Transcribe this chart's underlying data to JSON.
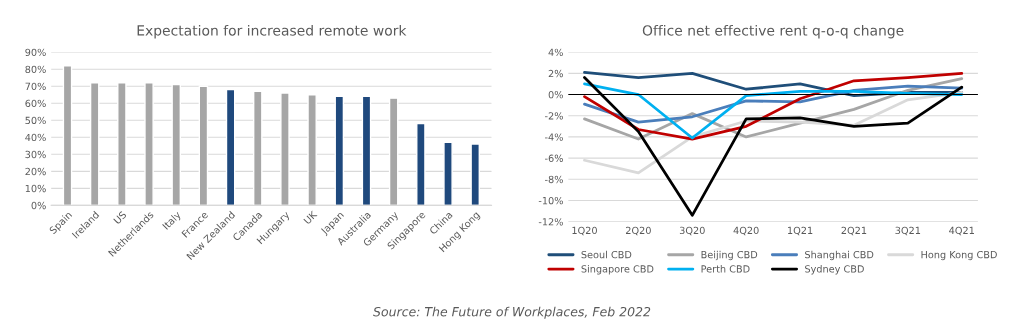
{
  "chart_data": [
    {
      "type": "bar",
      "title": "Expectation for increased remote work",
      "categories": [
        "Spain",
        "Ireland",
        "US",
        "Netherlands",
        "Italy",
        "France",
        "New Zealand",
        "Canada",
        "Hungary",
        "UK",
        "Japan",
        "Australia",
        "Germany",
        "Singapore",
        "China",
        "Hong Kong"
      ],
      "values": [
        82,
        72,
        72,
        72,
        71,
        70,
        68,
        67,
        66,
        65,
        64,
        64,
        63,
        48,
        37,
        36
      ],
      "colors": [
        "#a6a6a6",
        "#a6a6a6",
        "#a6a6a6",
        "#a6a6a6",
        "#a6a6a6",
        "#a6a6a6",
        "#1f497d",
        "#a6a6a6",
        "#a6a6a6",
        "#a6a6a6",
        "#1f497d",
        "#1f497d",
        "#a6a6a6",
        "#1f497d",
        "#1f497d",
        "#1f497d"
      ],
      "ylim": [
        0,
        90
      ],
      "yticks": [
        {
          "value": 0,
          "label": "0%"
        },
        {
          "value": 10,
          "label": "10%"
        },
        {
          "value": 20,
          "label": "20%"
        },
        {
          "value": 30,
          "label": "30%"
        },
        {
          "value": 40,
          "label": "40%"
        },
        {
          "value": 50,
          "label": "50%"
        },
        {
          "value": 60,
          "label": "60%"
        },
        {
          "value": 70,
          "label": "70%"
        },
        {
          "value": 80,
          "label": "80%"
        },
        {
          "value": 90,
          "label": "90%"
        }
      ],
      "grid": "y",
      "annotations": [
        "Source: The Future of Workplaces, Feb 2022"
      ]
    },
    {
      "type": "line",
      "title": "Office net effective rent q-o-q change",
      "categories": [
        "1Q20",
        "2Q20",
        "3Q20",
        "4Q20",
        "1Q21",
        "2Q21",
        "3Q21",
        "4Q21"
      ],
      "series": [
        {
          "name": "Seoul CBD",
          "color": "#1f4e79",
          "values": [
            2.1,
            1.6,
            2.0,
            0.5,
            1.0,
            -0.1,
            0.2,
            0.2
          ]
        },
        {
          "name": "Beijing CBD",
          "color": "#a6a6a6",
          "values": [
            -2.3,
            -4.2,
            -1.8,
            -4.0,
            -2.7,
            -1.4,
            0.4,
            1.5
          ]
        },
        {
          "name": "Shanghai CBD",
          "color": "#4a7ebb",
          "values": [
            -0.9,
            -2.6,
            -2.1,
            -0.6,
            -0.7,
            0.4,
            0.8,
            0.6
          ]
        },
        {
          "name": "Hong Kong CBD",
          "color": "#d9d9d9",
          "values": [
            -6.2,
            -7.4,
            -4.0,
            -2.5,
            -2.6,
            -2.9,
            -0.5,
            0.2
          ]
        },
        {
          "name": "Singapore CBD",
          "color": "#c00000",
          "values": [
            -0.2,
            -3.3,
            -4.2,
            -3.0,
            -0.4,
            1.3,
            1.6,
            2.0
          ]
        },
        {
          "name": "Perth CBD",
          "color": "#00b0f0",
          "values": [
            1.0,
            0.0,
            -4.1,
            -0.1,
            0.3,
            0.3,
            0.1,
            0.0
          ]
        },
        {
          "name": "Sydney CBD",
          "color": "#000000",
          "values": [
            1.6,
            -3.5,
            -11.4,
            -2.3,
            -2.2,
            -3.0,
            -2.7,
            0.7
          ]
        }
      ],
      "ylim": [
        -12,
        4
      ],
      "yticks": [
        {
          "value": -12,
          "label": "-12%"
        },
        {
          "value": -10,
          "label": "-10%"
        },
        {
          "value": -8,
          "label": "-8%"
        },
        {
          "value": -6,
          "label": "-6%"
        },
        {
          "value": -4,
          "label": "-4%"
        },
        {
          "value": -2,
          "label": "-2%"
        },
        {
          "value": 0,
          "label": "0%"
        },
        {
          "value": 2,
          "label": "2%"
        },
        {
          "value": 4,
          "label": "4%"
        }
      ],
      "ref_lines": [
        {
          "axis": "y",
          "value": 0,
          "label": null,
          "color": "#000000"
        }
      ],
      "grid": "y",
      "legend": "bottom",
      "marker": "none",
      "line_style": "solid"
    }
  ]
}
